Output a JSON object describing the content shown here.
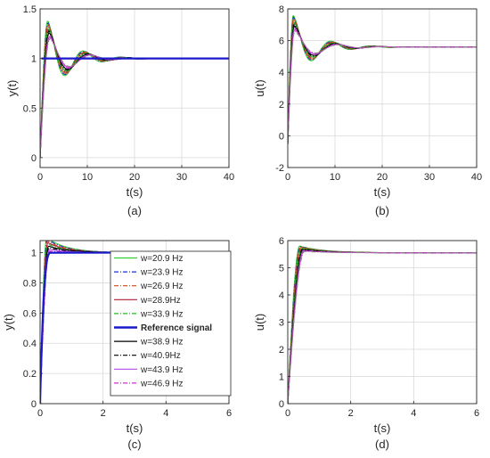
{
  "chart_data": [
    {
      "type": "line",
      "panel_label": "(a)",
      "xlabel": "t(s)",
      "ylabel": "y(t)",
      "xlim": [
        0,
        40
      ],
      "ylim": [
        -0.1,
        1.5
      ],
      "xticks": [
        0,
        10,
        20,
        30,
        40
      ],
      "yticks": [
        0,
        0.5,
        1,
        1.5
      ],
      "xtick_labels": [
        "0",
        "10",
        "20",
        "30",
        "40"
      ],
      "ytick_labels": [
        "0",
        "0.5",
        "1",
        "1.5"
      ],
      "grid": true,
      "reference": {
        "value": 1,
        "from": 0.3
      },
      "response": {
        "start": 0,
        "final": 1,
        "overshoot_range": [
          0.2,
          0.38
        ],
        "peak_time": 1.8,
        "period": 8.5,
        "settle_time": 20
      },
      "series_count": 10
    },
    {
      "type": "line",
      "panel_label": "(b)",
      "xlabel": "t(s)",
      "ylabel": "u(t)",
      "xlim": [
        0,
        40
      ],
      "ylim": [
        -2,
        8
      ],
      "xticks": [
        0,
        10,
        20,
        30,
        40
      ],
      "yticks": [
        -2,
        0,
        2,
        4,
        6,
        8
      ],
      "xtick_labels": [
        "0",
        "10",
        "20",
        "30",
        "40"
      ],
      "ytick_labels": [
        "-2",
        "0",
        "2",
        "4",
        "6",
        "8"
      ],
      "grid": true,
      "response": {
        "start": -0.5,
        "final": 5.6,
        "peak_range": [
          6.6,
          7.6
        ],
        "peak_time": 1.3,
        "period": 9,
        "settle_time": 20
      },
      "series_count": 10
    },
    {
      "type": "line",
      "panel_label": "(c)",
      "xlabel": "t(s)",
      "ylabel": "y(t)",
      "xlim": [
        0,
        6
      ],
      "ylim": [
        0,
        1.08
      ],
      "xticks": [
        0,
        2,
        4,
        6
      ],
      "yticks": [
        0,
        0.2,
        0.4,
        0.6,
        0.8,
        1
      ],
      "xtick_labels": [
        "0",
        "2",
        "4",
        "6"
      ],
      "ytick_labels": [
        "0",
        "0.2",
        "0.4",
        "0.6",
        "0.8",
        "1"
      ],
      "grid": true,
      "reference": {
        "value": 1,
        "rise_time": 0.35
      },
      "response": {
        "start": 0,
        "final": 1,
        "peak_range": [
          1.01,
          1.1
        ],
        "peak_time": 0.25,
        "settle_time": 2.5
      },
      "legend_position": "inside-right",
      "series": [
        {
          "name": "w=20.9 Hz",
          "color": "#33cc33",
          "dash": "solid"
        },
        {
          "name": "w=23.9 Hz",
          "color": "#1a33cc",
          "dash": "dashdot"
        },
        {
          "name": "w=26.9 Hz",
          "color": "#cc4d1a",
          "dash": "dashdot"
        },
        {
          "name": "w=28.9Hz",
          "color": "#b31a33",
          "dash": "solid"
        },
        {
          "name": "w=33.9 Hz",
          "color": "#22bb22",
          "dash": "dashdot"
        },
        {
          "name": "Reference signal",
          "color": "#1a1acc",
          "dash": "solid",
          "bold": true
        },
        {
          "name": "w=38.9 Hz",
          "color": "#000000",
          "dash": "solid"
        },
        {
          "name": "w=40.9Hz",
          "color": "#000000",
          "dash": "dashdot"
        },
        {
          "name": "w=43.9 Hz",
          "color": "#b34de6",
          "dash": "solid"
        },
        {
          "name": "w=46.9 Hz",
          "color": "#cc33cc",
          "dash": "dashdot"
        }
      ]
    },
    {
      "type": "line",
      "panel_label": "(d)",
      "xlabel": "t(s)",
      "ylabel": "u(t)",
      "xlim": [
        0,
        6
      ],
      "ylim": [
        0,
        6
      ],
      "xticks": [
        0,
        2,
        4,
        6
      ],
      "yticks": [
        0,
        1,
        2,
        3,
        4,
        5,
        6
      ],
      "xtick_labels": [
        "0",
        "2",
        "4",
        "6"
      ],
      "ytick_labels": [
        "0",
        "1",
        "2",
        "3",
        "4",
        "5",
        "6"
      ],
      "grid": true,
      "response": {
        "start": 0,
        "final": 5.55,
        "peak_range": [
          5.6,
          5.8
        ],
        "peak_time": 0.45,
        "settle_time": 3
      },
      "series_count": 10
    }
  ]
}
